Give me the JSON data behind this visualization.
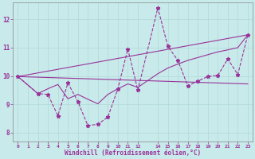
{
  "xlabel": "Windchill (Refroidissement éolien,°C)",
  "bg_color": "#c8eaea",
  "grid_color": "#b0d8d8",
  "line_color": "#993399",
  "xlim": [
    -0.5,
    23.5
  ],
  "ylim": [
    7.7,
    12.6
  ],
  "xticks": [
    0,
    1,
    2,
    3,
    4,
    5,
    6,
    7,
    8,
    9,
    10,
    11,
    12,
    14,
    15,
    16,
    17,
    18,
    19,
    20,
    21,
    22,
    23
  ],
  "yticks": [
    8,
    9,
    10,
    11,
    12
  ],
  "line1_x": [
    0,
    2,
    3,
    4,
    5,
    6,
    7,
    8,
    9,
    10,
    11,
    12,
    14,
    15,
    16,
    17,
    18,
    19,
    20,
    21,
    22,
    23
  ],
  "line1_y": [
    9.98,
    9.38,
    9.35,
    8.6,
    9.75,
    9.1,
    8.25,
    8.3,
    8.55,
    9.55,
    10.95,
    9.5,
    12.4,
    11.05,
    10.55,
    9.65,
    9.82,
    9.98,
    10.02,
    10.6,
    10.05,
    11.45
  ],
  "line2_x": [
    0,
    2,
    3,
    4,
    5,
    6,
    7,
    8,
    9,
    10,
    11,
    12,
    14,
    15,
    16,
    17,
    18,
    19,
    20,
    21,
    22,
    23
  ],
  "line2_y": [
    9.98,
    9.38,
    9.55,
    9.7,
    9.2,
    9.35,
    9.18,
    9.02,
    9.35,
    9.55,
    9.72,
    9.6,
    10.08,
    10.28,
    10.42,
    10.55,
    10.65,
    10.75,
    10.85,
    10.92,
    11.0,
    11.45
  ],
  "line3_x": [
    0,
    23
  ],
  "line3_y": [
    9.98,
    11.45
  ],
  "line4_x": [
    0,
    23
  ],
  "line4_y": [
    9.98,
    9.72
  ]
}
